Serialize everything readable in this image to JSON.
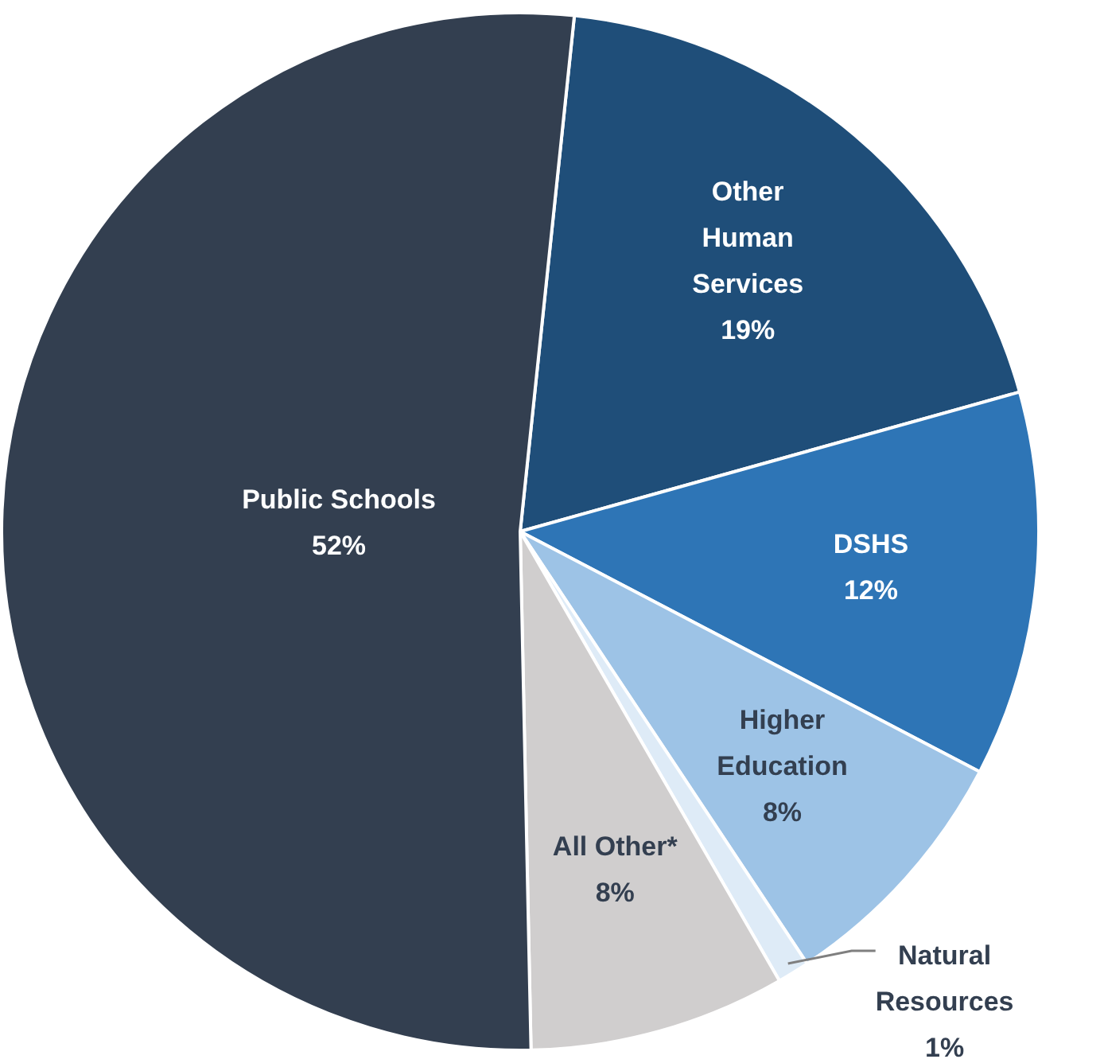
{
  "chart_data": {
    "type": "pie",
    "categories": [
      "Other Human Services",
      "DSHS",
      "Higher Education",
      "Natural Resources",
      "All Other*",
      "Public Schools"
    ],
    "values": [
      19,
      12,
      8,
      1,
      8,
      52
    ],
    "value_labels": [
      "19%",
      "12%",
      "8%",
      "1%",
      "8%",
      "52%"
    ],
    "colors": [
      "#1f4e79",
      "#2e75b6",
      "#9dc3e6",
      "#deebf7",
      "#d0cece",
      "#333f50"
    ],
    "legend": false
  }
}
